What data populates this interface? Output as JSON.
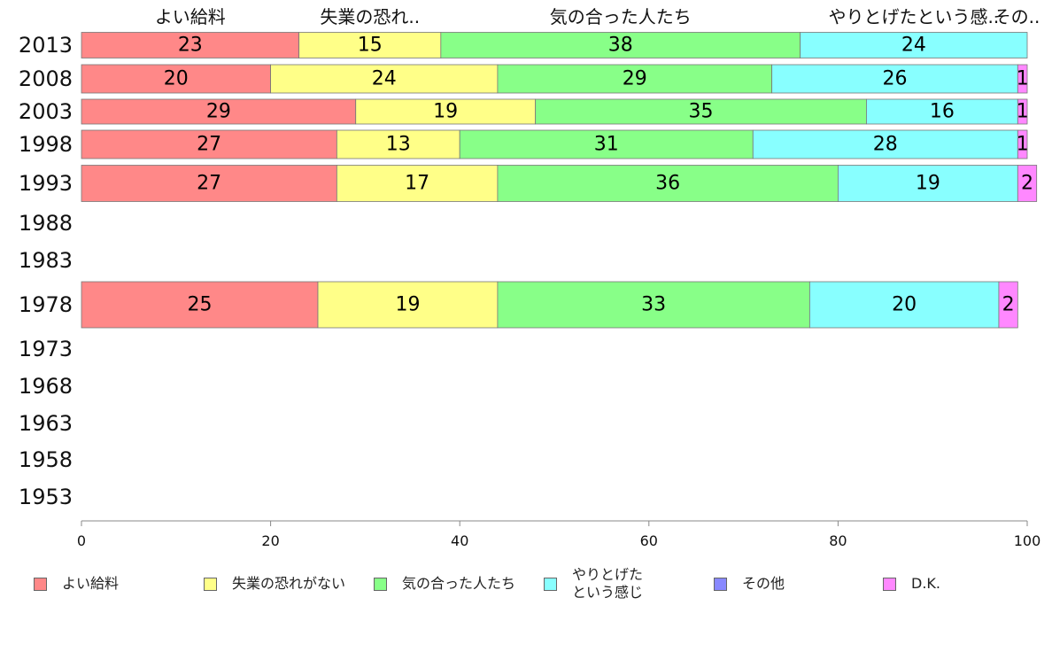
{
  "chart_data": {
    "type": "bar",
    "orientation": "horizontal",
    "stacked": true,
    "categories": [
      "2013",
      "2008",
      "2003",
      "1998",
      "1993",
      "1988",
      "1983",
      "1978",
      "1973",
      "1968",
      "1963",
      "1958",
      "1953"
    ],
    "series": [
      {
        "name": "よい給料",
        "top_label": "よい給料",
        "color": "#ff8888",
        "values": [
          23,
          20,
          29,
          27,
          27,
          null,
          null,
          25,
          null,
          null,
          null,
          null,
          null
        ]
      },
      {
        "name": "失業の恐れがない",
        "top_label": "失業の恐れ..",
        "color": "#ffff88",
        "values": [
          15,
          24,
          19,
          13,
          17,
          null,
          null,
          19,
          null,
          null,
          null,
          null,
          null
        ]
      },
      {
        "name": "気の合った人たち",
        "top_label": "気の合った人たち",
        "color": "#88ff88",
        "values": [
          38,
          29,
          35,
          31,
          36,
          null,
          null,
          33,
          null,
          null,
          null,
          null,
          null
        ]
      },
      {
        "name": "やりとげた\nという感じ",
        "top_label": "やりとげたという感..",
        "color": "#88ffff",
        "values": [
          24,
          26,
          16,
          28,
          19,
          null,
          null,
          20,
          null,
          null,
          null,
          null,
          null
        ]
      },
      {
        "name": "その他",
        "top_label": "その..",
        "color": "#8888ff",
        "values": [
          0,
          0,
          0,
          0,
          0,
          null,
          null,
          0,
          null,
          null,
          null,
          null,
          null
        ]
      },
      {
        "name": "D.K.",
        "top_label": "",
        "color": "#ff88ff",
        "values": [
          0,
          1,
          1,
          1,
          2,
          null,
          null,
          2,
          null,
          null,
          null,
          null,
          null
        ]
      }
    ],
    "xlim": [
      0,
      100
    ],
    "xticks": [
      "0",
      "20",
      "40",
      "60",
      "80",
      "100"
    ],
    "legend_position": "bottom",
    "grid": false
  }
}
